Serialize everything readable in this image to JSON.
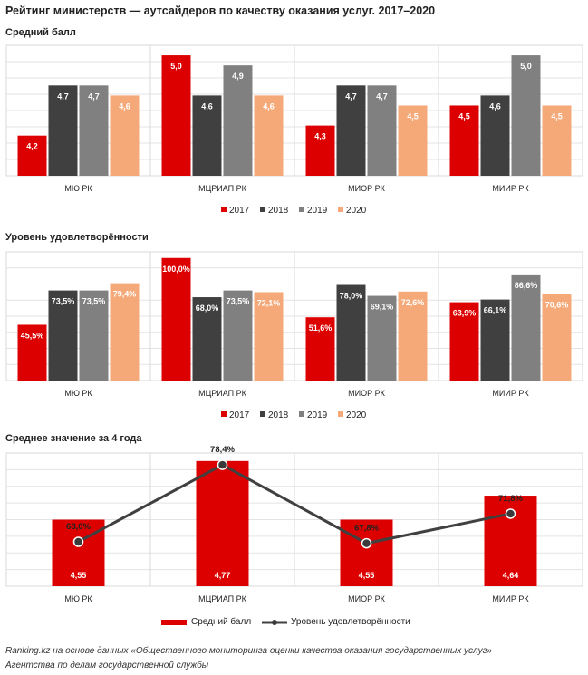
{
  "title": "Рейтинг министерств — аутсайдеров по качеству оказания услуг. 2017–2020",
  "footer": {
    "line1": "Ranking.kz на основе данных «Общественного мониторинга оценки качества оказания государственных услуг»",
    "line2": "Агентства по делам государственной службы"
  },
  "colors": {
    "2017": "#dd0000",
    "2018": "#404040",
    "2019": "#808080",
    "2020": "#f5a978",
    "line": "#404040",
    "grid": "#d9d9d9"
  },
  "chart_data": [
    {
      "type": "bar",
      "title": "Средний балл",
      "categories": [
        "МЮ РК",
        "МЦРИАП РК",
        "МИОР РК",
        "МИИР РК"
      ],
      "series": [
        {
          "name": "2017",
          "values": [
            4.2,
            5.0,
            4.3,
            4.5
          ],
          "labels": [
            "4,2",
            "5,0",
            "4,3",
            "4,5"
          ]
        },
        {
          "name": "2018",
          "values": [
            4.7,
            4.6,
            4.7,
            4.6
          ],
          "labels": [
            "4,7",
            "4,6",
            "4,7",
            "4,6"
          ]
        },
        {
          "name": "2019",
          "values": [
            4.7,
            4.9,
            4.7,
            5.0
          ],
          "labels": [
            "4,7",
            "4,9",
            "4,7",
            "5,0"
          ]
        },
        {
          "name": "2020",
          "values": [
            4.6,
            4.6,
            4.5,
            4.5
          ],
          "labels": [
            "4,6",
            "4,6",
            "4,5",
            "4,5"
          ]
        }
      ],
      "ylim": [
        3.8,
        5.1
      ],
      "legend": [
        "2017",
        "2018",
        "2019",
        "2020"
      ]
    },
    {
      "type": "bar",
      "title": "Уровень удовлетворённости",
      "categories": [
        "МЮ РК",
        "МЦРИАП РК",
        "МИОР РК",
        "МИИР РК"
      ],
      "series": [
        {
          "name": "2017",
          "values": [
            45.5,
            100.0,
            51.6,
            63.9
          ],
          "labels": [
            "45,5%",
            "100,0%",
            "51,6%",
            "63,9%"
          ]
        },
        {
          "name": "2018",
          "values": [
            73.5,
            68.0,
            78.0,
            66.1
          ],
          "labels": [
            "73,5%",
            "68,0%",
            "78,0%",
            "66,1%"
          ]
        },
        {
          "name": "2019",
          "values": [
            73.5,
            73.5,
            69.1,
            86.6
          ],
          "labels": [
            "73,5%",
            "73,5%",
            "69,1%",
            "86,6%"
          ]
        },
        {
          "name": "2020",
          "values": [
            79.4,
            72.1,
            72.6,
            70.6
          ],
          "labels": [
            "79,4%",
            "72,1%",
            "72,6%",
            "70,6%"
          ]
        }
      ],
      "ylim": [
        0,
        105
      ],
      "legend": [
        "2017",
        "2018",
        "2019",
        "2020"
      ]
    },
    {
      "type": "bar+line",
      "title": "Среднее значение  за 4 года",
      "categories": [
        "МЮ РК",
        "МЦРИАП РК",
        "МИОР РК",
        "МИИР РК"
      ],
      "bar_series": {
        "name": "Средний балл",
        "values": [
          4.55,
          4.77,
          4.55,
          4.64
        ],
        "labels": [
          "4,55",
          "4,77",
          "4,55",
          "4,64"
        ],
        "ylim": [
          4.3,
          4.8
        ]
      },
      "line_series": {
        "name": "Уровень удовлетворённости",
        "values": [
          68.0,
          78.4,
          67.8,
          71.8
        ],
        "labels": [
          "68,0%",
          "78,4%",
          "67,8%",
          "71,8%"
        ],
        "ylim": [
          62,
          80
        ]
      },
      "legend": [
        "Средний балл",
        "Уровень удовлетворённости"
      ]
    }
  ]
}
